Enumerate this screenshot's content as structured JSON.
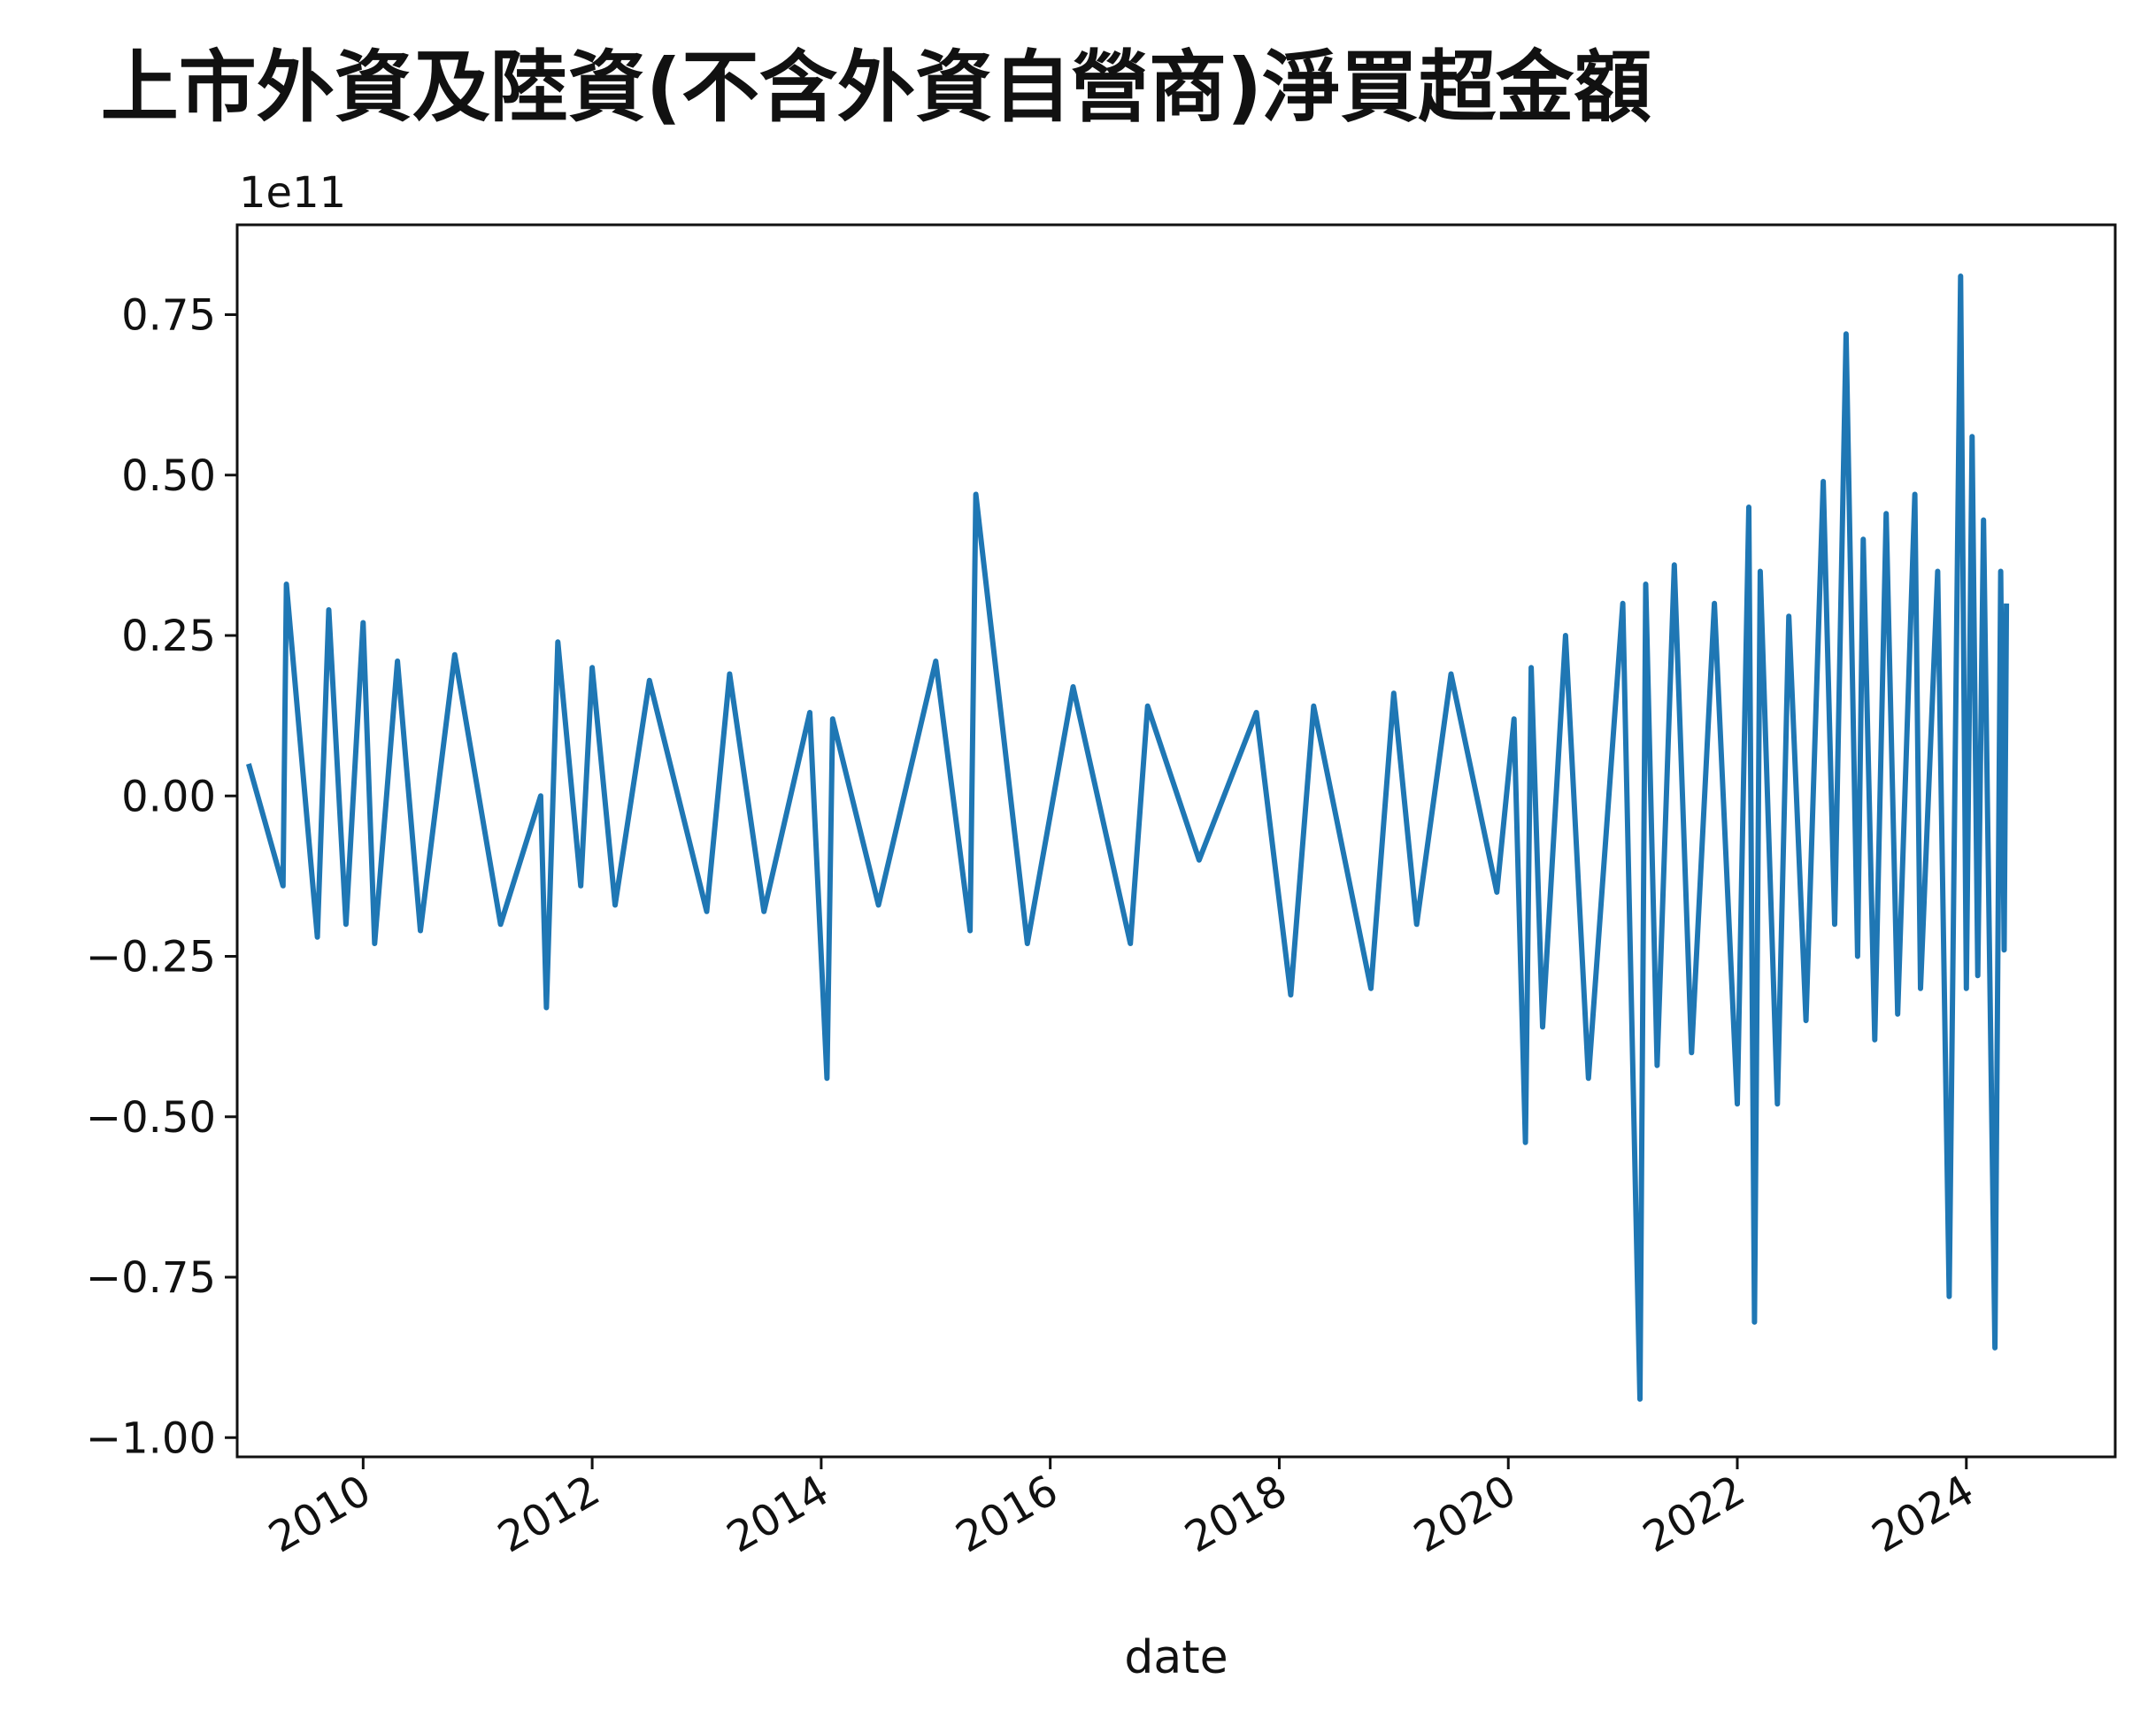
{
  "chart_data": {
    "type": "line",
    "title": "上市外資及陸資(不含外資自營商)淨買超金額",
    "xlabel": "date",
    "ylabel": "",
    "offset_label": "1e11",
    "y_scale_factor": 100000000000.0,
    "xlim": [
      2008.9,
      2025.3
    ],
    "ylim": [
      -1.03,
      0.89
    ],
    "x_ticks": [
      2010,
      2012,
      2014,
      2016,
      2018,
      2020,
      2022,
      2024
    ],
    "x_tick_labels": [
      "2010",
      "2012",
      "2014",
      "2016",
      "2018",
      "2020",
      "2022",
      "2024"
    ],
    "y_ticks": [
      0.75,
      0.5,
      0.25,
      0.0,
      -0.25,
      -0.5,
      -0.75,
      -1.0
    ],
    "y_tick_labels": [
      "0.75",
      "0.50",
      "0.25",
      "0.00",
      "−0.25",
      "−0.50",
      "−0.75",
      "−1.00"
    ],
    "grid": false,
    "legend": "none",
    "series_color": "#1f77b4",
    "series": [
      {
        "x": [
          2009.0,
          2009.3,
          2009.33,
          2009.6,
          2009.7,
          2009.85,
          2010.0,
          2010.1,
          2010.3,
          2010.5,
          2010.8,
          2011.2,
          2011.55,
          2011.6,
          2011.7,
          2011.9,
          2012.0,
          2012.2,
          2012.5,
          2013.0,
          2013.2,
          2013.5,
          2013.9,
          2014.05,
          2014.1,
          2014.5,
          2015.0,
          2015.3,
          2015.35,
          2015.8,
          2016.2,
          2016.7,
          2016.85,
          2017.3,
          2017.8,
          2018.1,
          2018.3,
          2018.8,
          2019.0,
          2019.2,
          2019.5,
          2019.9,
          2020.05,
          2020.15,
          2020.2,
          2020.3,
          2020.5,
          2020.7,
          2021.0,
          2021.15,
          2021.2,
          2021.3,
          2021.45,
          2021.6,
          2021.8,
          2022.0,
          2022.1,
          2022.15,
          2022.2,
          2022.35,
          2022.45,
          2022.6,
          2022.75,
          2022.85,
          2022.95,
          2023.05,
          2023.1,
          2023.2,
          2023.3,
          2023.4,
          2023.55,
          2023.6,
          2023.75,
          2023.85,
          2023.95,
          2024.0,
          2024.05,
          2024.1,
          2024.15,
          2024.25,
          2024.3,
          2024.33,
          2024.35
        ],
        "y": [
          0.05,
          -0.14,
          0.33,
          -0.22,
          0.29,
          -0.2,
          0.27,
          -0.23,
          0.21,
          -0.21,
          0.22,
          -0.2,
          0.0,
          -0.33,
          0.24,
          -0.14,
          0.2,
          -0.17,
          0.18,
          -0.18,
          0.19,
          -0.18,
          0.13,
          -0.44,
          0.12,
          -0.17,
          0.21,
          -0.21,
          0.47,
          -0.23,
          0.17,
          -0.23,
          0.14,
          -0.1,
          0.13,
          -0.31,
          0.14,
          -0.3,
          0.16,
          -0.2,
          0.19,
          -0.15,
          0.12,
          -0.54,
          0.2,
          -0.36,
          0.25,
          -0.44,
          0.3,
          -0.94,
          0.33,
          -0.42,
          0.36,
          -0.4,
          0.3,
          -0.48,
          0.45,
          -0.82,
          0.35,
          -0.48,
          0.28,
          -0.35,
          0.49,
          -0.2,
          0.72,
          -0.25,
          0.4,
          -0.38,
          0.44,
          -0.34,
          0.47,
          -0.3,
          0.35,
          -0.78,
          0.81,
          -0.3,
          0.56,
          -0.28,
          0.43,
          -0.86,
          0.35,
          -0.24,
          0.3
        ]
      }
    ]
  }
}
